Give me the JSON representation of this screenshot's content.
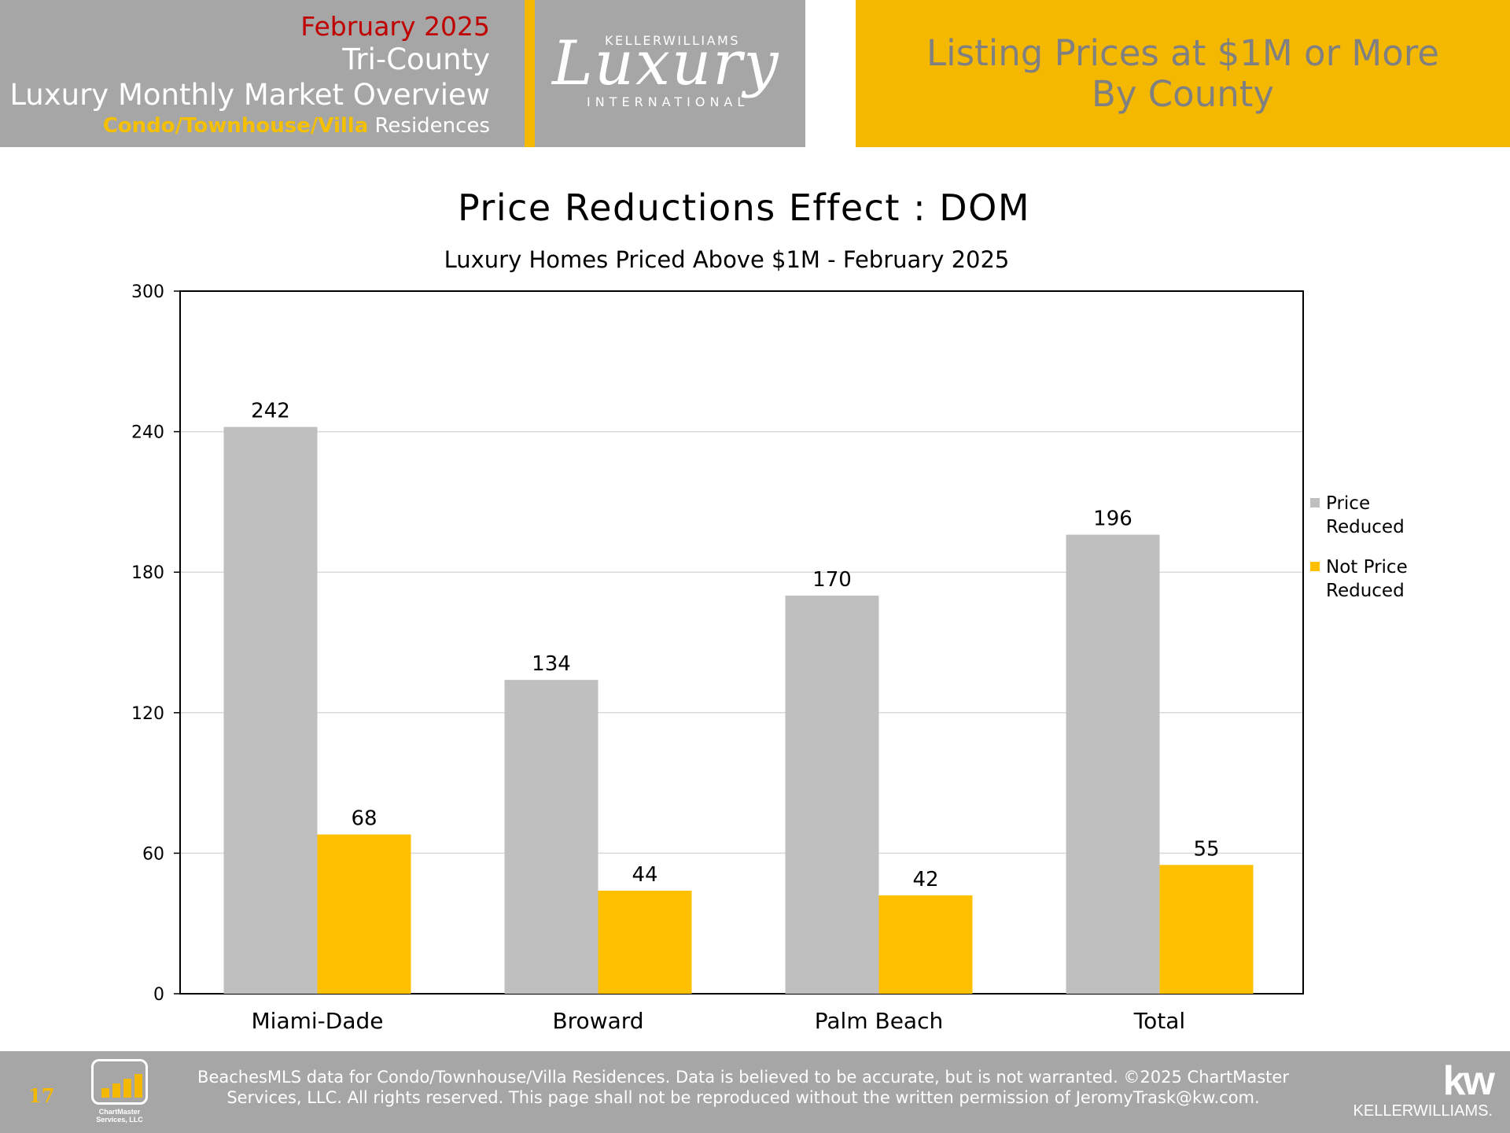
{
  "header": {
    "date": "February 2025",
    "region": "Tri-County",
    "title": "Luxury Monthly Market Overview",
    "subtitle_highlight": "Condo/Townhouse/Villa",
    "subtitle_rest": "Residences",
    "logo_brand": "KELLERWILLIAMS",
    "logo_script": "Luxury",
    "logo_intl": "INTERNATIONAL",
    "right_line1": "Listing Prices at $1M or More",
    "right_line2": "By County"
  },
  "chart_data": {
    "type": "bar",
    "title": "Price Reductions Effect : DOM",
    "subtitle": "Luxury Homes Priced Above $1M - February 2025",
    "categories": [
      "Miami-Dade",
      "Broward",
      "Palm Beach",
      "Total"
    ],
    "series": [
      {
        "name": "Price Reduced",
        "values": [
          242,
          134,
          170,
          196
        ],
        "color": "#bfbfbf"
      },
      {
        "name": "Not Price Reduced",
        "values": [
          68,
          44,
          42,
          55
        ],
        "color": "#ffc000"
      }
    ],
    "legend_lines": [
      [
        "Price",
        "Reduced"
      ],
      [
        "Not Price",
        "Reduced"
      ]
    ],
    "legend_position": "right",
    "ylim": [
      0,
      300
    ],
    "yticks": [
      0,
      60,
      120,
      180,
      240,
      300
    ],
    "grid": true
  },
  "footer": {
    "page_number": "17",
    "logo_label_1": "ChartMaster",
    "logo_label_2": "Services, LLC",
    "line1": "BeachesMLS data for Condo/Townhouse/Villa Residences.  Data is believed to be accurate, but is not warranted.   ©2025  ChartMaster",
    "line2": "Services, LLC.  All rights reserved. This page shall not be reproduced without the written permission of JeromyTrask@kw.com.",
    "kw_mark": "kw",
    "kw_name": "KELLERWILLIAMS."
  }
}
